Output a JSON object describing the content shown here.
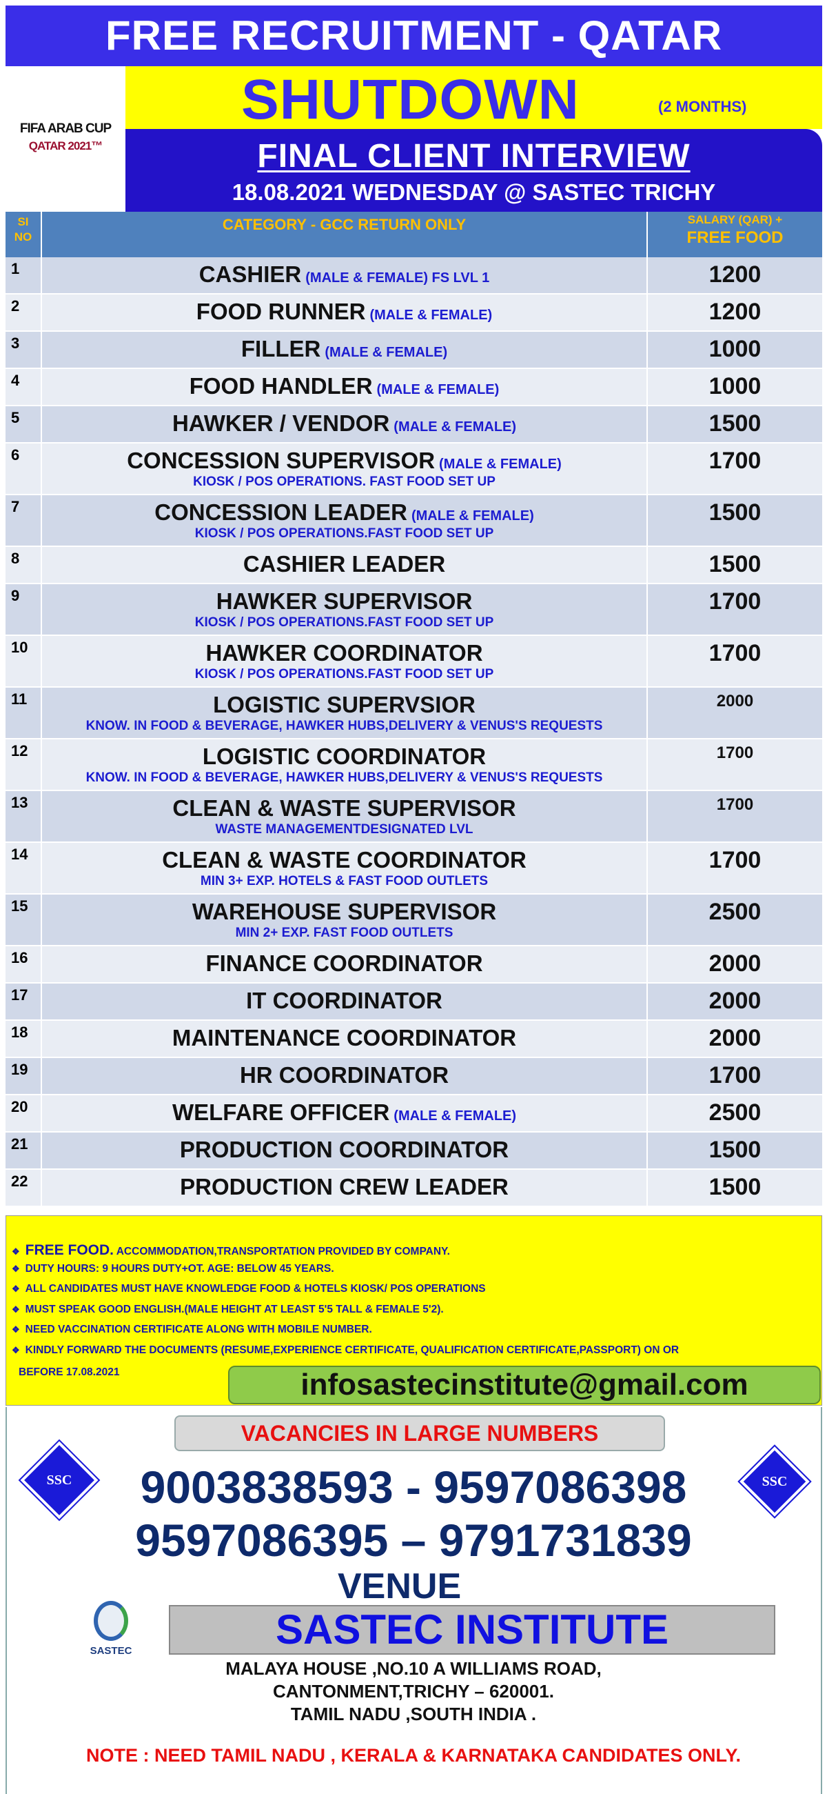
{
  "header": {
    "title": "FREE RECRUITMENT - QATAR",
    "logo_line1": "FIFA ARAB CUP",
    "logo_line2": "QATAR 2021™",
    "shutdown": "SHUTDOWN",
    "duration": "(2 MONTHS)",
    "interview": "FINAL CLIENT INTERVIEW",
    "date_venue": "18.08.2021 WEDNESDAY @ SASTEC TRICHY"
  },
  "table": {
    "col_si_line1": "SI",
    "col_si_line2": "NO",
    "col_category": "CATEGORY  - GCC RETURN ONLY",
    "col_salary_line1": "SALARY (QAR) +",
    "col_salary_line2": "FREE FOOD",
    "rows": [
      {
        "no": "1",
        "title": "CASHIER",
        "qual": "(MALE & FEMALE) FS LVL 1",
        "sub": "",
        "salary": "1200"
      },
      {
        "no": "2",
        "title": "FOOD RUNNER",
        "qual": "(MALE & FEMALE)",
        "sub": "",
        "salary": "1200"
      },
      {
        "no": "3",
        "title": "FILLER",
        "qual": "(MALE & FEMALE)",
        "sub": "",
        "salary": "1000"
      },
      {
        "no": "4",
        "title": "FOOD HANDLER",
        "qual": "(MALE & FEMALE)",
        "sub": "",
        "salary": "1000"
      },
      {
        "no": "5",
        "title": "HAWKER / VENDOR",
        "qual": "(MALE & FEMALE)",
        "sub": "",
        "salary": "1500"
      },
      {
        "no": "6",
        "title": "CONCESSION SUPERVISOR",
        "qual": "(MALE & FEMALE)",
        "sub": "KIOSK / POS OPERATIONS. FAST FOOD SET UP",
        "salary": "1700"
      },
      {
        "no": "7",
        "title": "CONCESSION LEADER",
        "qual": "(MALE & FEMALE)",
        "sub": "KIOSK / POS OPERATIONS.FAST FOOD SET UP",
        "salary": "1500"
      },
      {
        "no": "8",
        "title": "CASHIER LEADER",
        "qual": "",
        "sub": "",
        "salary": "1500"
      },
      {
        "no": "9",
        "title": "HAWKER SUPERVISOR",
        "qual": "",
        "sub": "KIOSK / POS OPERATIONS.FAST FOOD SET UP",
        "salary": "1700"
      },
      {
        "no": "10",
        "title": "HAWKER COORDINATOR",
        "qual": "",
        "sub": "KIOSK / POS OPERATIONS.FAST FOOD SET UP",
        "salary": "1700"
      },
      {
        "no": "11",
        "title": "LOGISTIC SUPERVSIOR",
        "qual": "",
        "sub": "KNOW. IN FOOD & BEVERAGE, HAWKER HUBS,DELIVERY & VENUS'S REQUESTS",
        "salary": "2000"
      },
      {
        "no": "12",
        "title": "LOGISTIC COORDINATOR",
        "qual": "",
        "sub": "KNOW. IN FOOD & BEVERAGE, HAWKER HUBS,DELIVERY & VENUS'S REQUESTS",
        "salary": "1700"
      },
      {
        "no": "13",
        "title": "CLEAN & WASTE SUPERVISOR",
        "qual": "",
        "sub": "WASTE MANAGEMENTDESIGNATED LVL",
        "salary": "1700"
      },
      {
        "no": "14",
        "title": "CLEAN & WASTE COORDINATOR",
        "qual": "",
        "sub": "MIN 3+ EXP. HOTELS & FAST FOOD OUTLETS",
        "salary": "1700"
      },
      {
        "no": "15",
        "title": "WAREHOUSE SUPERVISOR",
        "qual": "",
        "sub": "MIN 2+ EXP. FAST FOOD OUTLETS",
        "salary": "2500"
      },
      {
        "no": "16",
        "title": "FINANCE COORDINATOR",
        "qual": "",
        "sub": "",
        "salary": "2000"
      },
      {
        "no": "17",
        "title": "IT COORDINATOR",
        "qual": "",
        "sub": "",
        "salary": "2000"
      },
      {
        "no": "18",
        "title": "MAINTENANCE COORDINATOR",
        "qual": "",
        "sub": "",
        "salary": "2000"
      },
      {
        "no": "19",
        "title": "HR COORDINATOR",
        "qual": "",
        "sub": "",
        "salary": "1700"
      },
      {
        "no": "20",
        "title": "WELFARE OFFICER",
        "qual": "(MALE & FEMALE)",
        "sub": "",
        "salary": "2500"
      },
      {
        "no": "21",
        "title": "PRODUCTION COORDINATOR",
        "qual": "",
        "sub": "",
        "salary": "1500"
      },
      {
        "no": "22",
        "title": "PRODUCTION CREW LEADER",
        "qual": "",
        "sub": "",
        "salary": "1500"
      }
    ]
  },
  "notes": {
    "bullet_icon": "diamond-bullet",
    "item1_lead": "FREE FOOD.",
    "item1_rest": "ACCOMMODATION,TRANSPORTATION PROVIDED BY COMPANY.",
    "item2": "DUTY HOURS: 9 HOURS DUTY+OT.  AGE: BELOW 45 YEARS.",
    "item3": "ALL CANDIDATES MUST HAVE KNOWLEDGE FOOD & HOTELS KIOSK/ POS OPERATIONS",
    "item4": "MUST SPEAK GOOD ENGLISH.(MALE HEIGHT AT LEAST 5'5 TALL & FEMALE 5'2).",
    "item5": "NEED VACCINATION CERTIFICATE ALONG WITH MOBILE NUMBER.",
    "item6": "KINDLY FORWARD THE DOCUMENTS (RESUME,EXPERIENCE CERTIFICATE, QUALIFICATION CERTIFICATE,PASSPORT) ON OR",
    "item6_cont": "BEFORE 17.08.2021",
    "email": "infosastecinstitute@gmail.com"
  },
  "contact": {
    "vacancies": "VACANCIES IN LARGE NUMBERS",
    "phones_line1": "9003838593 - 9597086398",
    "phones_line2": "9597086395 – 9791731839",
    "ssc_logo": "SSC",
    "venue_label": "VENUE",
    "institute": "SASTEC INSTITUTE",
    "institute_logo": "SASTEC",
    "address1": "MALAYA HOUSE ,NO.10 A WILLIAMS ROAD,",
    "address2": "CANTONMENT,TRICHY – 620001.",
    "address3": "TAMIL NADU ,SOUTH INDIA .",
    "note": "NOTE  : NEED TAMIL NADU , KERALA & KARNATAKA CANDIDATES ONLY."
  },
  "colors": {
    "primary_blue": "#3a2ee8",
    "yellow": "#ffff00",
    "table_header": "#4f81bd",
    "accent_red": "#e81010",
    "navy": "#0e2a6b",
    "email_green": "#8fcb4a"
  }
}
